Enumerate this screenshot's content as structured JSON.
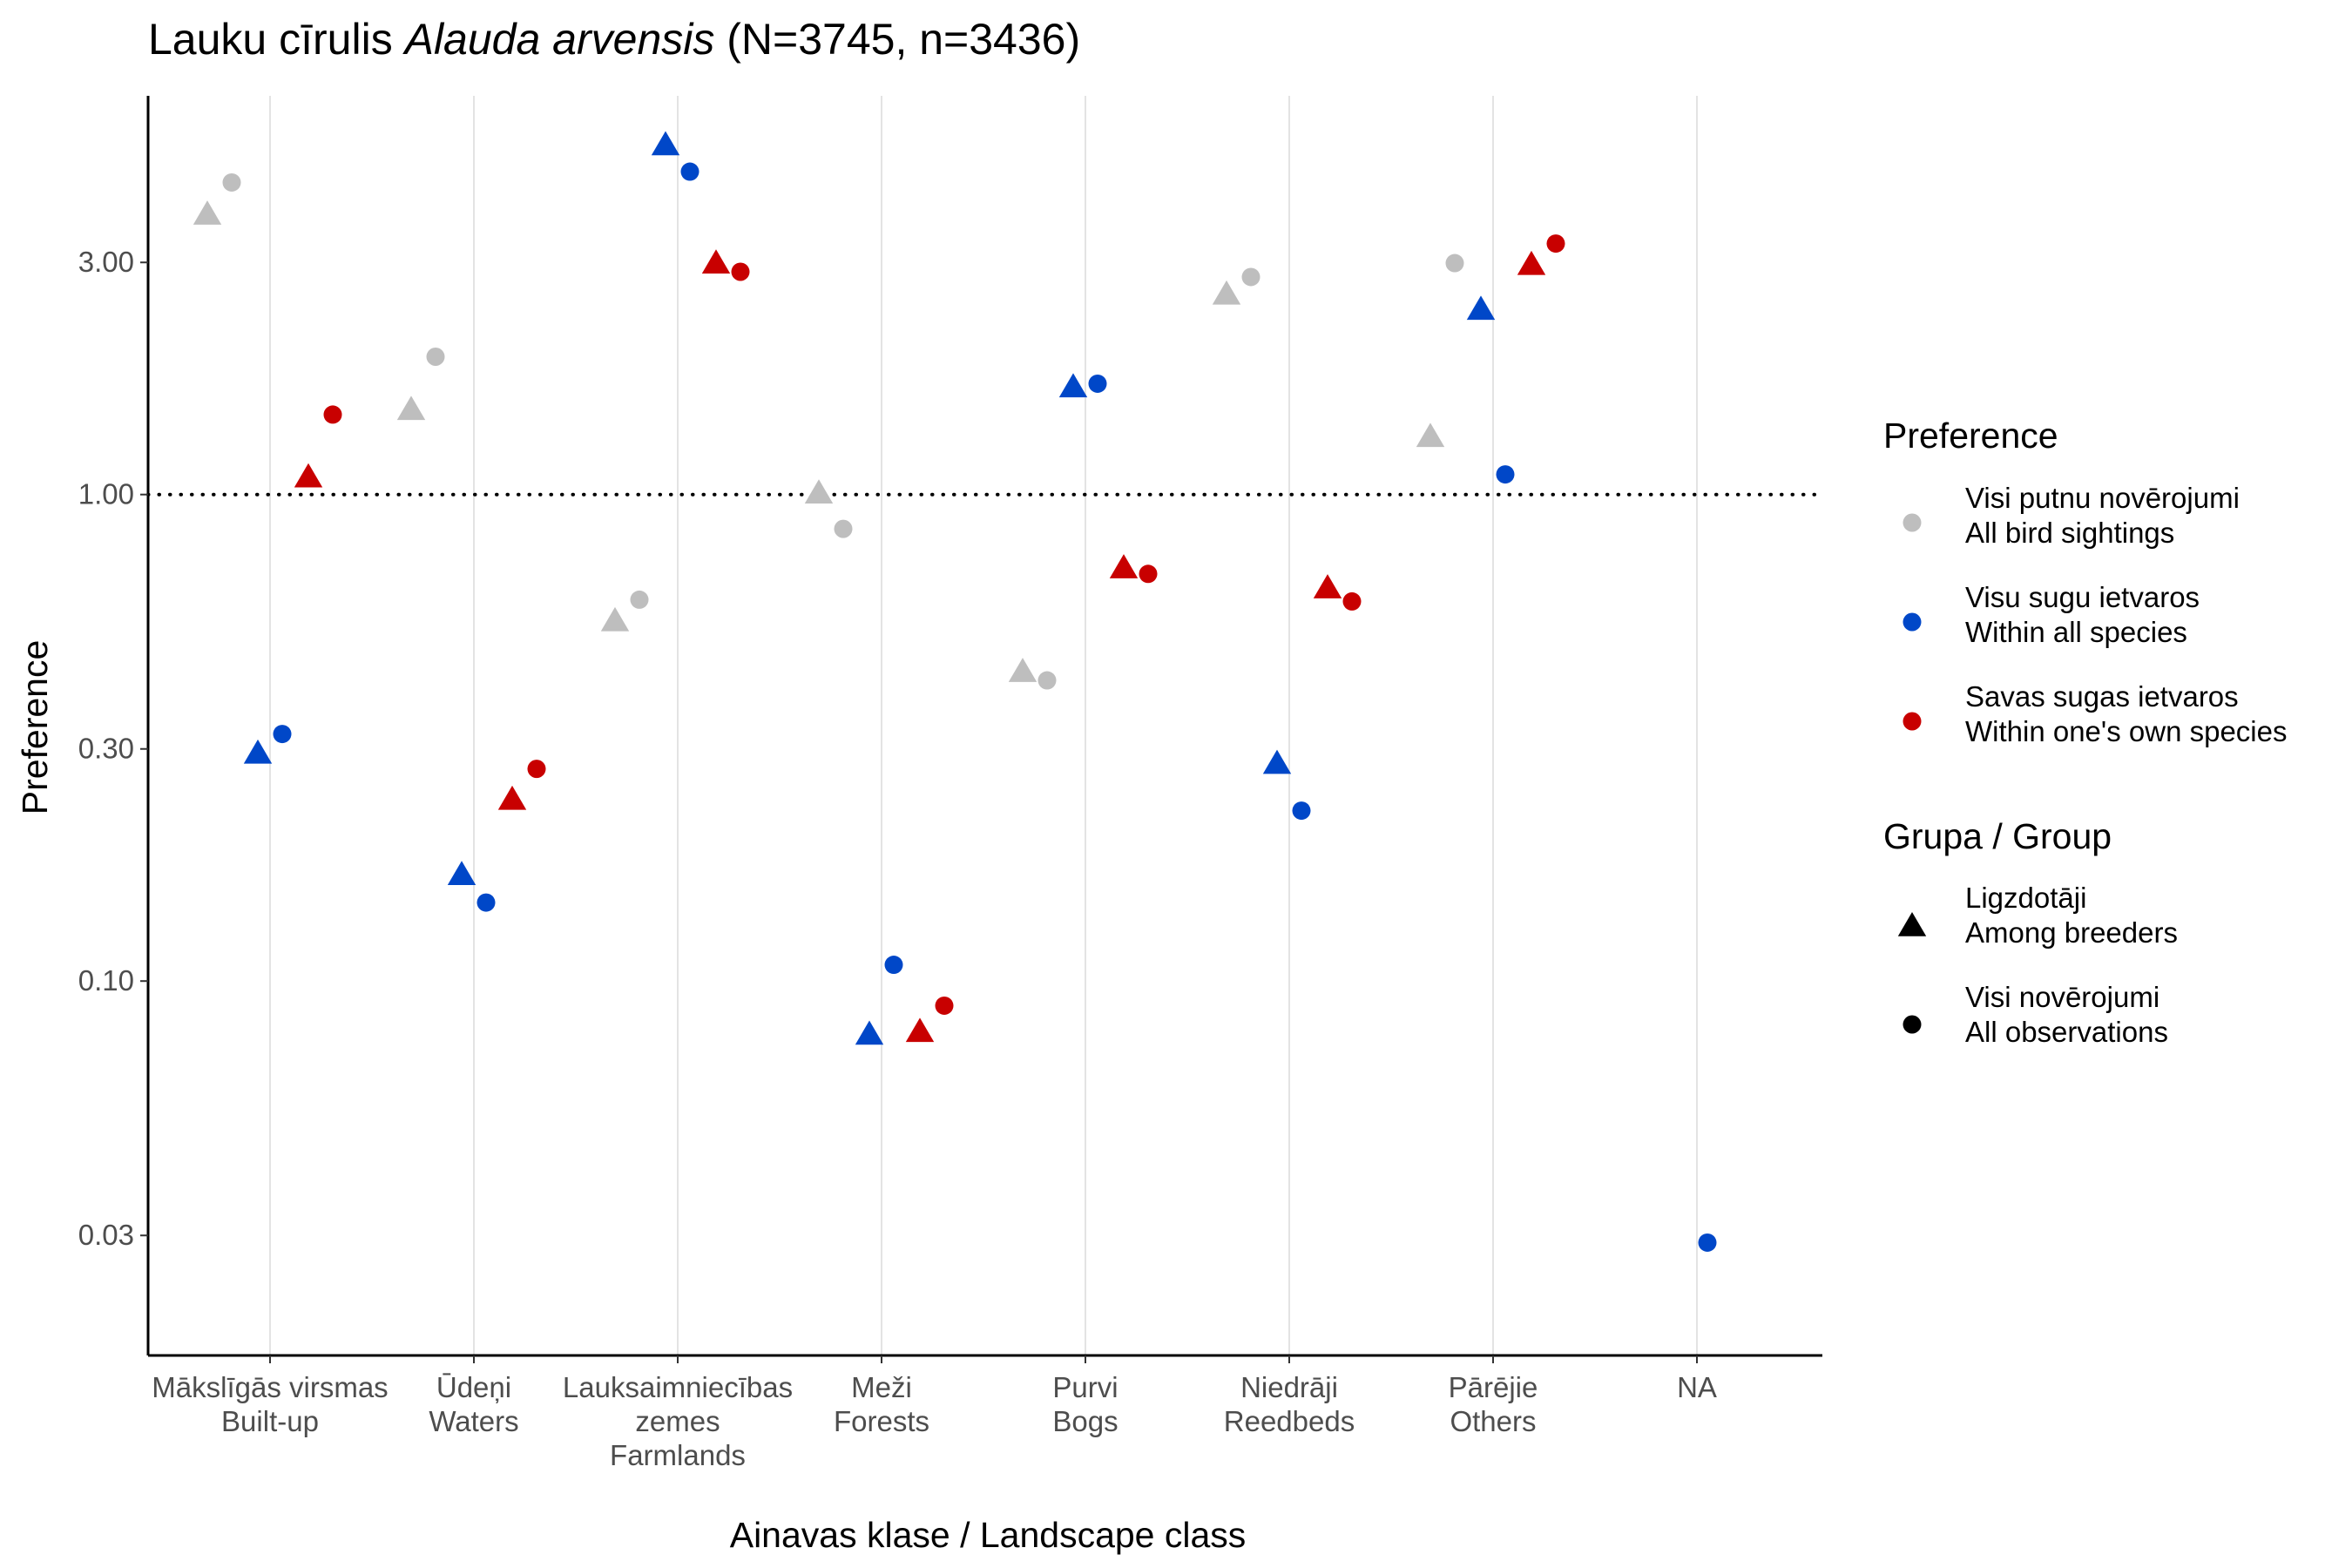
{
  "chart_data": {
    "type": "scatter",
    "title_parts": [
      {
        "text": "Lauku cīrulis ",
        "italic": false
      },
      {
        "text": "Alauda arvensis",
        "italic": true
      },
      {
        "text": " (N=3745, n=3436)",
        "italic": false
      }
    ],
    "xlabel": "Ainavas klase / Landscape class",
    "ylabel": "Preference",
    "y_scale": "log10",
    "ylim": [
      0.017,
      6.6
    ],
    "y_ticks": [
      {
        "value": 0.03,
        "label": "0.03"
      },
      {
        "value": 0.1,
        "label": "0.10"
      },
      {
        "value": 0.3,
        "label": "0.30"
      },
      {
        "value": 1,
        "label": "1.00"
      },
      {
        "value": 3,
        "label": "3.00"
      }
    ],
    "reference_line": {
      "value": 1,
      "style": "dotted"
    },
    "grid": "vertical-major",
    "categories": [
      {
        "lines": [
          "Mākslīgās virsmas",
          "Built-up"
        ]
      },
      {
        "lines": [
          "Ūdeņi",
          "Waters"
        ]
      },
      {
        "lines": [
          "Lauksaimniecības",
          "zemes",
          "Farmlands"
        ]
      },
      {
        "lines": [
          "Meži",
          "Forests"
        ]
      },
      {
        "lines": [
          "Purvi",
          "Bogs"
        ]
      },
      {
        "lines": [
          "Niedrāji",
          "Reedbeds"
        ]
      },
      {
        "lines": [
          "Pārējie",
          "Others"
        ]
      },
      {
        "lines": [
          "NA"
        ]
      }
    ],
    "legend_position": "right",
    "legend_color_title": "Preference",
    "legend_shape_title": "Grupa / Group",
    "series": [
      {
        "key": "all_birds",
        "lines": [
          "Visi putnu novērojumi",
          "All bird sightings"
        ],
        "color": "#BEBEBE"
      },
      {
        "key": "all_species",
        "lines": [
          "Visu sugu ietvaros",
          "Within all species"
        ],
        "color": "#0047C8"
      },
      {
        "key": "own_species",
        "lines": [
          "Savas sugas ietvaros",
          "Within one's own species"
        ],
        "color": "#C80000"
      }
    ],
    "groups": [
      {
        "key": "breeders",
        "shape": "triangle",
        "lines": [
          "Ligzdotāji",
          "Among breeders"
        ]
      },
      {
        "key": "all_obs",
        "shape": "circle",
        "lines": [
          "Visi novērojumi",
          "All observations"
        ]
      }
    ],
    "points": [
      {
        "category": 0,
        "series": "all_birds",
        "group": "breeders",
        "value": 3.78
      },
      {
        "category": 0,
        "series": "all_birds",
        "group": "all_obs",
        "value": 4.38
      },
      {
        "category": 0,
        "series": "all_species",
        "group": "breeders",
        "value": 0.295
      },
      {
        "category": 0,
        "series": "all_species",
        "group": "all_obs",
        "value": 0.322
      },
      {
        "category": 0,
        "series": "own_species",
        "group": "breeders",
        "value": 1.09
      },
      {
        "category": 0,
        "series": "own_species",
        "group": "all_obs",
        "value": 1.46
      },
      {
        "category": 1,
        "series": "all_birds",
        "group": "breeders",
        "value": 1.5
      },
      {
        "category": 1,
        "series": "all_birds",
        "group": "all_obs",
        "value": 1.92
      },
      {
        "category": 1,
        "series": "all_species",
        "group": "breeders",
        "value": 0.166
      },
      {
        "category": 1,
        "series": "all_species",
        "group": "all_obs",
        "value": 0.145
      },
      {
        "category": 1,
        "series": "own_species",
        "group": "breeders",
        "value": 0.237
      },
      {
        "category": 1,
        "series": "own_species",
        "group": "all_obs",
        "value": 0.273
      },
      {
        "category": 2,
        "series": "all_birds",
        "group": "breeders",
        "value": 0.552
      },
      {
        "category": 2,
        "series": "all_birds",
        "group": "all_obs",
        "value": 0.608
      },
      {
        "category": 2,
        "series": "all_species",
        "group": "breeders",
        "value": 5.25
      },
      {
        "category": 2,
        "series": "all_species",
        "group": "all_obs",
        "value": 4.61
      },
      {
        "category": 2,
        "series": "own_species",
        "group": "breeders",
        "value": 3.0
      },
      {
        "category": 2,
        "series": "own_species",
        "group": "all_obs",
        "value": 2.87
      },
      {
        "category": 3,
        "series": "all_birds",
        "group": "breeders",
        "value": 1.01
      },
      {
        "category": 3,
        "series": "all_birds",
        "group": "all_obs",
        "value": 0.85
      },
      {
        "category": 3,
        "series": "all_species",
        "group": "breeders",
        "value": 0.078
      },
      {
        "category": 3,
        "series": "all_species",
        "group": "all_obs",
        "value": 0.108
      },
      {
        "category": 3,
        "series": "own_species",
        "group": "breeders",
        "value": 0.079
      },
      {
        "category": 3,
        "series": "own_species",
        "group": "all_obs",
        "value": 0.089
      },
      {
        "category": 4,
        "series": "all_birds",
        "group": "breeders",
        "value": 0.434
      },
      {
        "category": 4,
        "series": "all_birds",
        "group": "all_obs",
        "value": 0.415
      },
      {
        "category": 4,
        "series": "all_species",
        "group": "breeders",
        "value": 1.67
      },
      {
        "category": 4,
        "series": "all_species",
        "group": "all_obs",
        "value": 1.69
      },
      {
        "category": 4,
        "series": "own_species",
        "group": "breeders",
        "value": 0.709
      },
      {
        "category": 4,
        "series": "own_species",
        "group": "all_obs",
        "value": 0.687
      },
      {
        "category": 5,
        "series": "all_birds",
        "group": "breeders",
        "value": 2.59
      },
      {
        "category": 5,
        "series": "all_birds",
        "group": "all_obs",
        "value": 2.8
      },
      {
        "category": 5,
        "series": "all_species",
        "group": "breeders",
        "value": 0.281
      },
      {
        "category": 5,
        "series": "all_species",
        "group": "all_obs",
        "value": 0.224
      },
      {
        "category": 5,
        "series": "own_species",
        "group": "breeders",
        "value": 0.645
      },
      {
        "category": 5,
        "series": "own_species",
        "group": "all_obs",
        "value": 0.603
      },
      {
        "category": 6,
        "series": "all_birds",
        "group": "breeders",
        "value": 1.32
      },
      {
        "category": 6,
        "series": "all_birds",
        "group": "all_obs",
        "value": 2.99
      },
      {
        "category": 6,
        "series": "all_species",
        "group": "breeders",
        "value": 2.41
      },
      {
        "category": 6,
        "series": "all_species",
        "group": "all_obs",
        "value": 1.1
      },
      {
        "category": 6,
        "series": "own_species",
        "group": "breeders",
        "value": 2.98
      },
      {
        "category": 6,
        "series": "own_species",
        "group": "all_obs",
        "value": 3.28
      },
      {
        "category": 7,
        "series": "all_species",
        "group": "all_obs",
        "value": 0.029
      }
    ]
  }
}
